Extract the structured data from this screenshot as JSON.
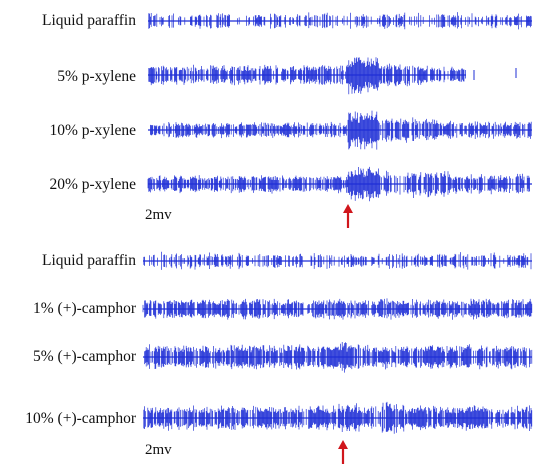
{
  "colors": {
    "trace": "#1f2fd6",
    "arrow": "#d0161c",
    "text": "#111111"
  },
  "panels": [
    {
      "rows": [
        {
          "label": "Liquid paraffin",
          "profile": "baseline"
        },
        {
          "label": "5% p-xylene",
          "profile": "burst-then-fade"
        },
        {
          "label": "10% p-xylene",
          "profile": "burst-sustained"
        },
        {
          "label": "20% p-xylene",
          "profile": "burst-strong"
        }
      ],
      "scale_label": "2mv",
      "stimulus_arrow": true
    },
    {
      "rows": [
        {
          "label": "Liquid paraffin",
          "profile": "baseline"
        },
        {
          "label": "1% (+)-camphor",
          "profile": "steady"
        },
        {
          "label": "5% (+)-camphor",
          "profile": "mild-response"
        },
        {
          "label": "10% (+)-camphor",
          "profile": "delayed-response"
        }
      ],
      "scale_label": "2mv",
      "stimulus_arrow": true
    }
  ]
}
